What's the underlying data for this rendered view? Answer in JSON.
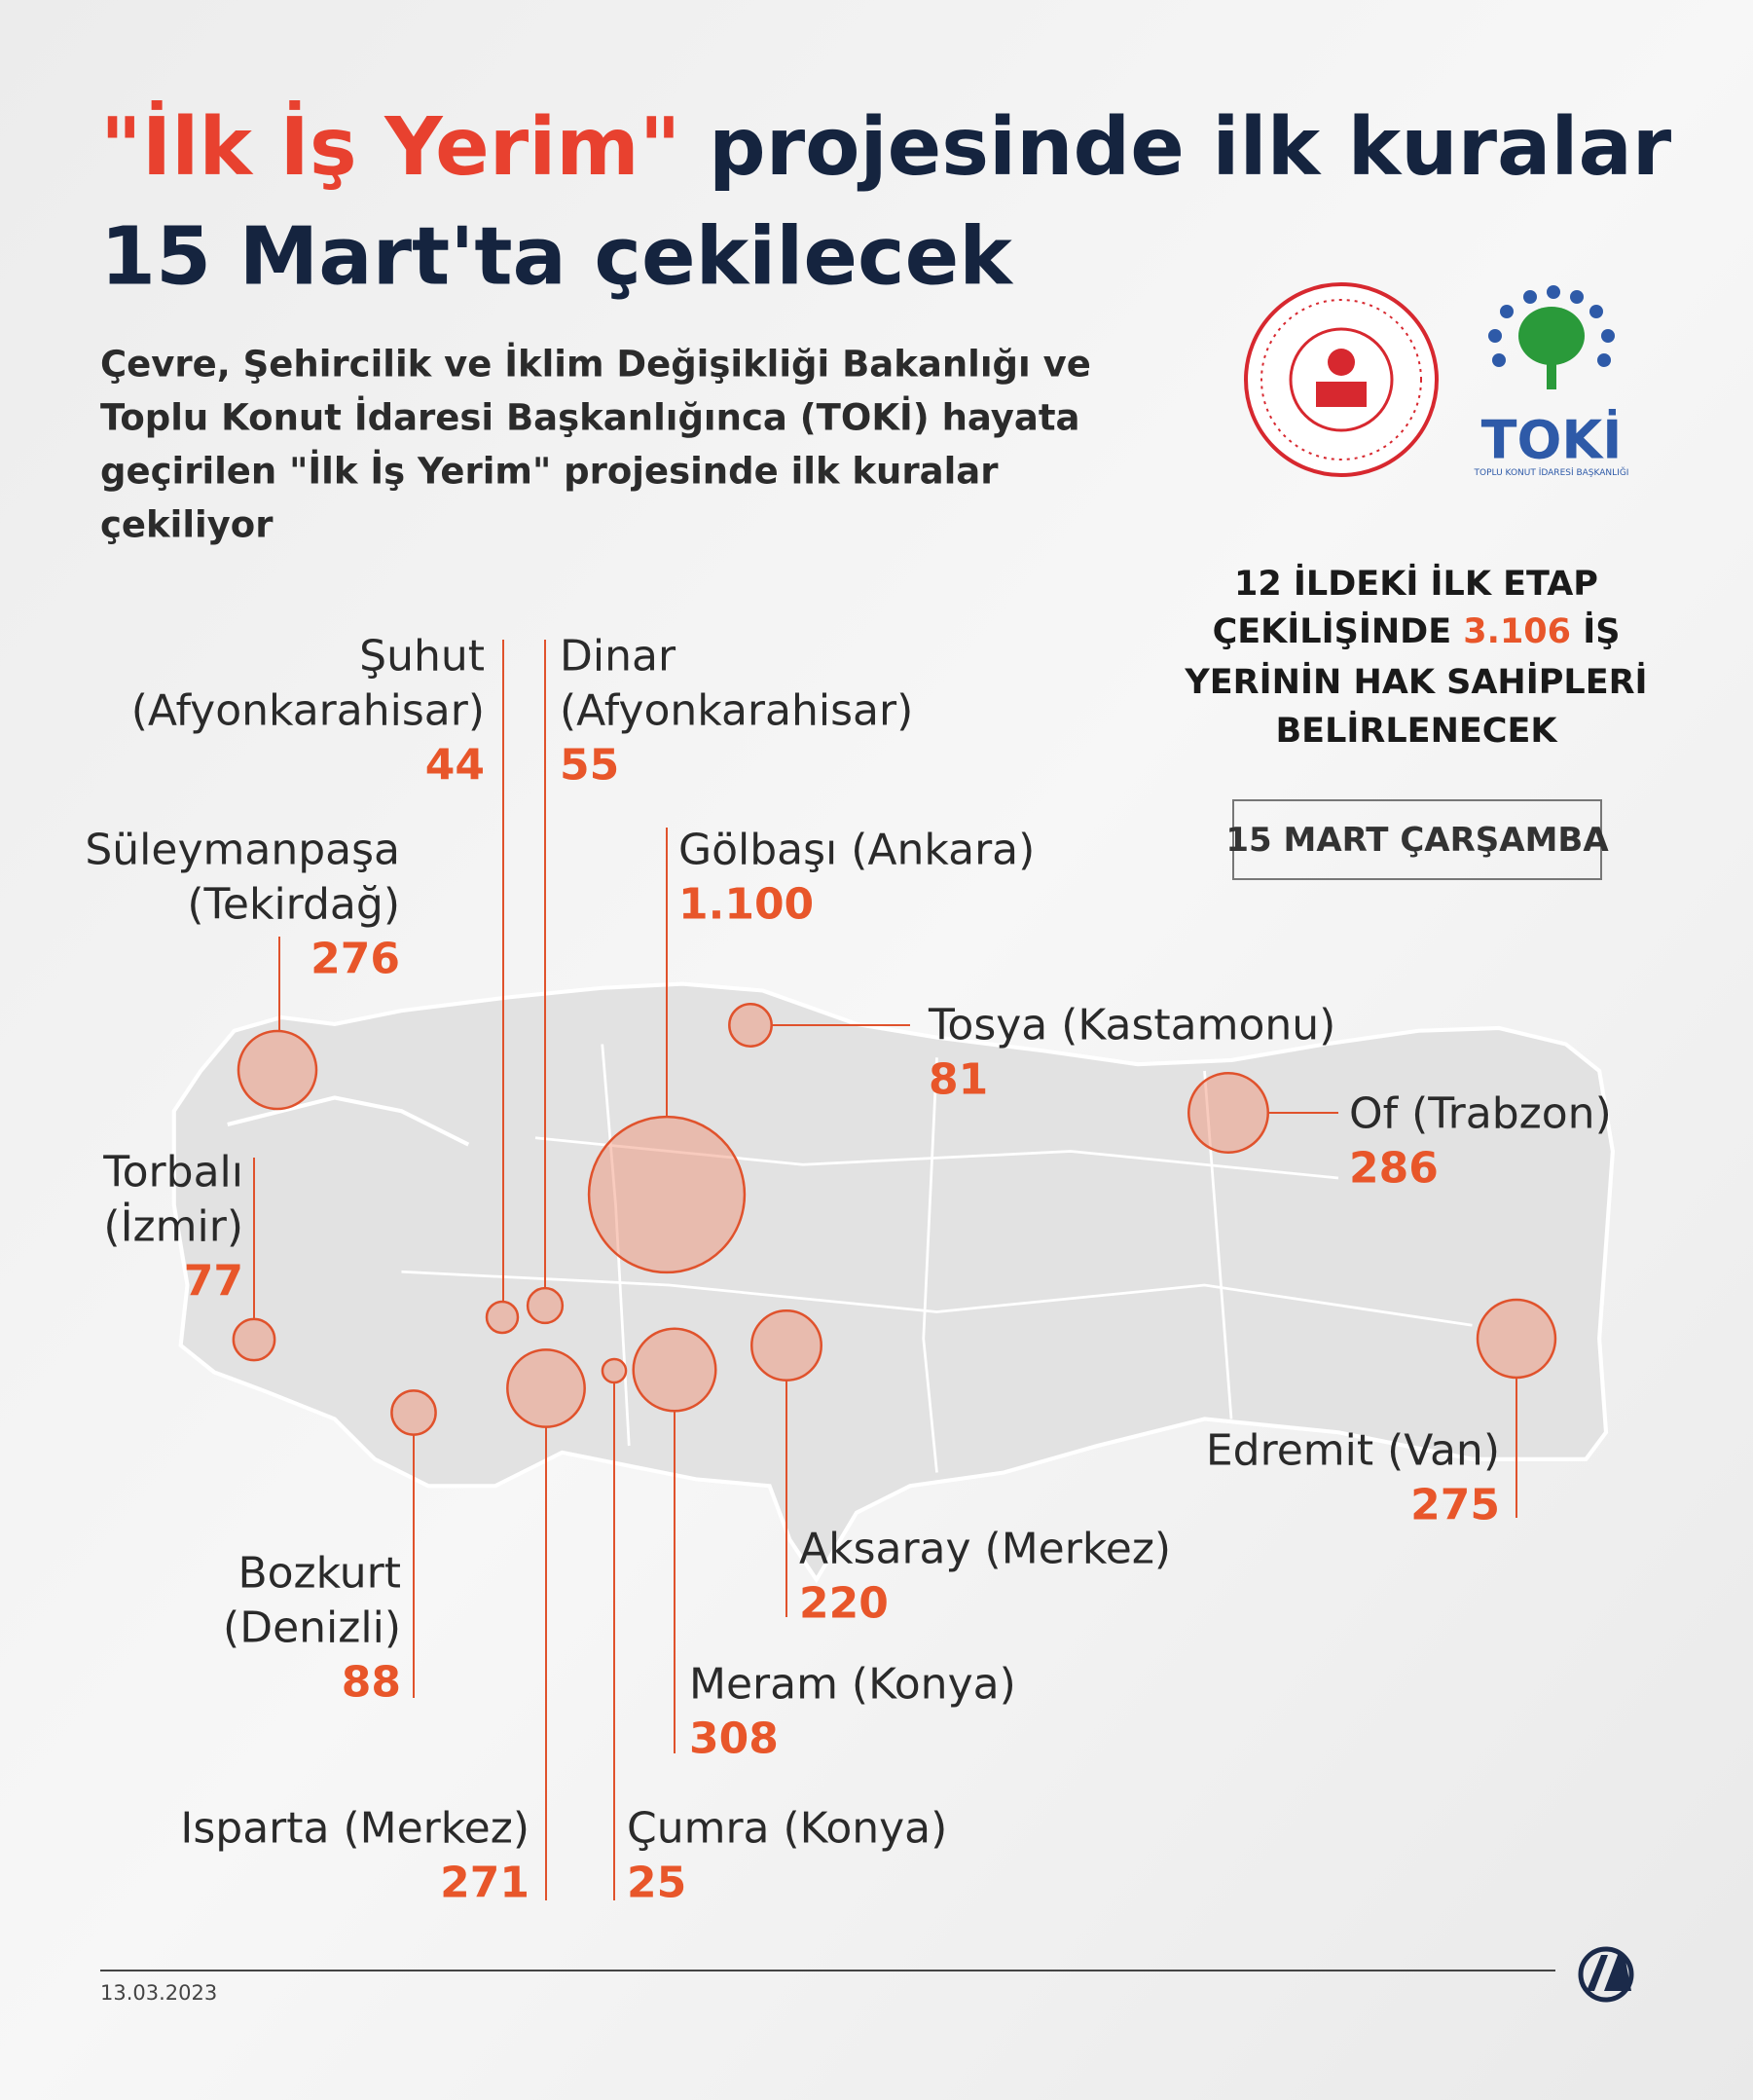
{
  "title": {
    "highlight": "\"İlk İş Yerim\"",
    "line1_rest": "projesinde ilk kuralar",
    "line2": "15 Mart'ta çekilecek"
  },
  "subtitle_lines": [
    "Çevre, Şehircilik ve İklim Değişikliği Bakanlığı ve",
    "Toplu Konut İdaresi Başkanlığınca (TOKİ) hayata",
    "geçirilen \"İlk İş Yerim\" projesinde ilk kuralar",
    "çekiliyor"
  ],
  "logo": {
    "name": "TOKİ",
    "full_name": "TOPLU KONUT İDARESİ BAŞKANLIĞI"
  },
  "summary": {
    "line1": "12 İLDEKİ İLK ETAP",
    "line2_before": "ÇEKİLİŞİNDE",
    "total": 3106,
    "total_label": "3.106",
    "line2_after": "İŞ",
    "line3": "YERİNİN HAK SAHİPLERİ",
    "line4": "BELİRLENECEK"
  },
  "draw_date": "15 MART ÇARŞAMBA",
  "locations": [
    {
      "lines": [
        "Şuhut",
        "(Afyonkarahisar)"
      ],
      "value": 44
    },
    {
      "lines": [
        "Dinar",
        "(Afyonkarahisar)"
      ],
      "value": 55
    },
    {
      "lines": [
        "Süleymanpaşa",
        "(Tekirdağ)"
      ],
      "value": 276
    },
    {
      "lines": [
        "Gölbaşı (Ankara)"
      ],
      "value": 1100,
      "value_label": "1.100"
    },
    {
      "lines": [
        "Tosya (Kastamonu)"
      ],
      "value": 81
    },
    {
      "lines": [
        "Of (Trabzon)"
      ],
      "value": 286
    },
    {
      "lines": [
        "Torbalı",
        "(İzmir)"
      ],
      "value": 77
    },
    {
      "lines": [
        "Bozkurt",
        "(Denizli)"
      ],
      "value": 88
    },
    {
      "lines": [
        "Isparta (Merkez)"
      ],
      "value": 271
    },
    {
      "lines": [
        "Çumra (Konya)"
      ],
      "value": 25
    },
    {
      "lines": [
        "Meram (Konya)"
      ],
      "value": 308
    },
    {
      "lines": [
        "Aksaray (Merkez)"
      ],
      "value": 220
    },
    {
      "lines": [
        "Edremit (Van)"
      ],
      "value": 275
    }
  ],
  "footer": {
    "date": "13.03.2023"
  }
}
